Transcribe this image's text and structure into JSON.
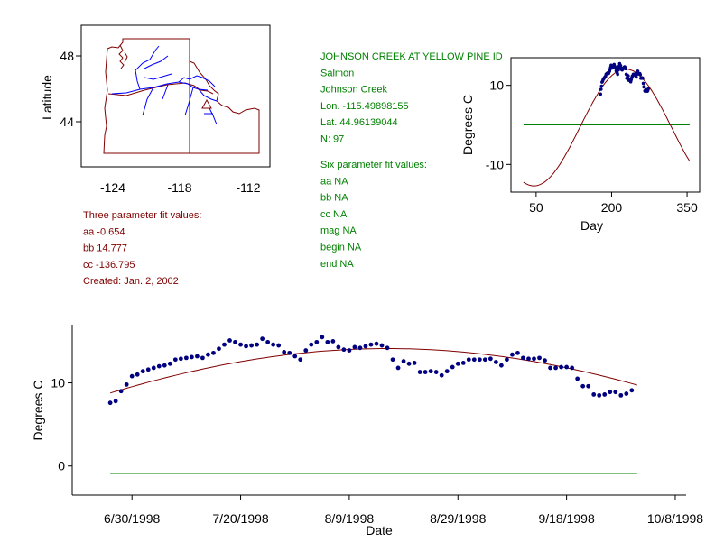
{
  "colors": {
    "info_green": "#008000",
    "fit_red": "#800000",
    "points_blue": "#000080",
    "rivers": "#0000ff"
  },
  "map": {
    "ylabel": "Latitude",
    "yticks": [
      "48",
      "44"
    ],
    "xticks": [
      "-124",
      "-118",
      "-112"
    ],
    "site_marker": "triangle"
  },
  "station": {
    "lines": [
      "JOHNSON CREEK AT YELLOW PINE ID",
      "Salmon",
      "Johnson Creek",
      "Lon. -115.49898155",
      "Lat. 44.96139044",
      "N: 97"
    ]
  },
  "three_param": {
    "lines": [
      "Three parameter fit values:",
      "aa -0.654",
      "bb 14.777",
      "cc -136.795",
      "Created:   Jan. 2, 2002"
    ]
  },
  "six_param": {
    "lines": [
      "Six parameter fit values:",
      "aa NA",
      "bb NA",
      "cc NA",
      "mag NA",
      "begin NA",
      "end NA"
    ]
  },
  "chart_data": [
    {
      "type": "scatter",
      "xlabel": "Day",
      "ylabel": "Degrees C",
      "xticks": [
        50,
        200,
        350
      ],
      "yticks": [
        10,
        -10
      ],
      "xlim": [
        0,
        375
      ],
      "ylim": [
        -17,
        17
      ],
      "mean_line": 0,
      "fit_curve": {
        "aa": -0.654,
        "bb": 14.777,
        "cc": -136.795,
        "x_range": [
          25,
          355
        ]
      },
      "points": [
        [
          177,
          7.6
        ],
        [
          178,
          7.8
        ],
        [
          179,
          9.0
        ],
        [
          180,
          9.8
        ],
        [
          181,
          10.8
        ],
        [
          182,
          11.0
        ],
        [
          183,
          11.4
        ],
        [
          184,
          11.6
        ],
        [
          185,
          11.8
        ],
        [
          186,
          12.0
        ],
        [
          187,
          12.1
        ],
        [
          188,
          12.3
        ],
        [
          189,
          12.8
        ],
        [
          190,
          12.9
        ],
        [
          191,
          13.0
        ],
        [
          192,
          13.1
        ],
        [
          193,
          13.2
        ],
        [
          194,
          13.0
        ],
        [
          195,
          13.4
        ],
        [
          196,
          13.6
        ],
        [
          197,
          14.1
        ],
        [
          198,
          14.6
        ],
        [
          199,
          15.1
        ],
        [
          200,
          14.9
        ],
        [
          201,
          14.6
        ],
        [
          202,
          14.4
        ],
        [
          203,
          14.5
        ],
        [
          204,
          14.6
        ],
        [
          205,
          15.3
        ],
        [
          206,
          14.9
        ],
        [
          207,
          14.6
        ],
        [
          208,
          14.5
        ],
        [
          209,
          13.7
        ],
        [
          210,
          13.6
        ],
        [
          211,
          13.2
        ],
        [
          212,
          12.8
        ],
        [
          213,
          13.9
        ],
        [
          214,
          14.6
        ],
        [
          215,
          14.9
        ],
        [
          216,
          15.5
        ],
        [
          217,
          14.9
        ],
        [
          218,
          15.0
        ],
        [
          219,
          14.3
        ],
        [
          220,
          14.0
        ],
        [
          221,
          13.9
        ],
        [
          222,
          14.3
        ],
        [
          223,
          14.2
        ],
        [
          224,
          14.4
        ],
        [
          225,
          14.6
        ],
        [
          226,
          14.7
        ],
        [
          227,
          14.5
        ],
        [
          228,
          14.2
        ],
        [
          229,
          12.8
        ],
        [
          230,
          11.8
        ],
        [
          231,
          12.6
        ],
        [
          232,
          12.3
        ],
        [
          233,
          12.4
        ],
        [
          234,
          11.3
        ],
        [
          235,
          11.3
        ],
        [
          236,
          11.4
        ],
        [
          237,
          11.3
        ],
        [
          238,
          10.9
        ],
        [
          239,
          11.4
        ],
        [
          240,
          11.9
        ],
        [
          241,
          12.3
        ],
        [
          242,
          12.4
        ],
        [
          243,
          12.8
        ],
        [
          244,
          12.8
        ],
        [
          245,
          12.8
        ],
        [
          246,
          12.8
        ],
        [
          247,
          12.9
        ],
        [
          248,
          12.5
        ],
        [
          249,
          12.1
        ],
        [
          250,
          12.8
        ],
        [
          251,
          13.4
        ],
        [
          252,
          13.6
        ],
        [
          253,
          13.0
        ],
        [
          254,
          12.9
        ],
        [
          255,
          12.9
        ],
        [
          256,
          13.0
        ],
        [
          257,
          12.7
        ],
        [
          258,
          11.8
        ],
        [
          259,
          11.8
        ],
        [
          260,
          11.9
        ],
        [
          261,
          11.9
        ],
        [
          262,
          11.8
        ],
        [
          263,
          10.5
        ],
        [
          264,
          9.6
        ],
        [
          265,
          9.6
        ],
        [
          266,
          8.6
        ],
        [
          267,
          8.5
        ],
        [
          268,
          8.6
        ],
        [
          269,
          8.9
        ],
        [
          270,
          8.9
        ],
        [
          271,
          8.5
        ],
        [
          272,
          8.7
        ],
        [
          273,
          9.1
        ]
      ]
    },
    {
      "type": "scatter",
      "xlabel": "Date",
      "ylabel": "Degrees C",
      "xtick_labels": [
        "6/30/1998",
        "7/20/1998",
        "8/9/1998",
        "8/29/1998",
        "9/18/1998",
        "10/8/1998"
      ],
      "xlim": [
        "6/19/1998",
        "10/10/1998"
      ],
      "ylim": [
        -3.5,
        17
      ],
      "yticks": [
        10,
        0
      ],
      "mean_line": -0.9,
      "fit_range": [
        "6/26/1998",
        "10/1/1998"
      ]
    }
  ]
}
